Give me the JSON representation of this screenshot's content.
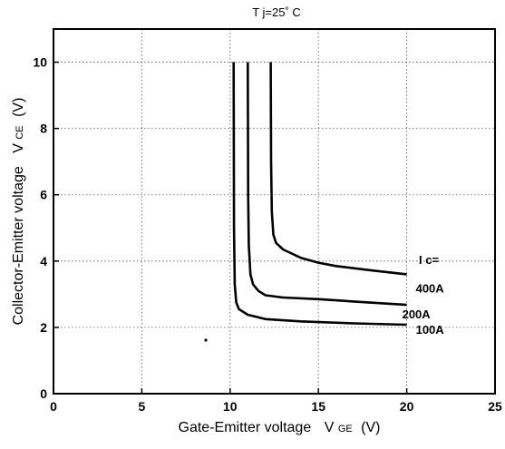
{
  "chart_data": {
    "type": "line",
    "title": "T j=25˚ C",
    "xlabel": "Gate-Emitter voltage",
    "xlabel_symbol_main": "V",
    "xlabel_symbol_sub": "GE",
    "xlabel_unit": "(V)",
    "ylabel": "Collector-Emitter voltage",
    "ylabel_symbol_main": "V",
    "ylabel_symbol_sub": "CE",
    "ylabel_unit": "(V)",
    "xlim": [
      0,
      25
    ],
    "ylim": [
      0,
      11
    ],
    "xticks": [
      0,
      5,
      10,
      15,
      20,
      25
    ],
    "yticks": [
      0,
      2,
      4,
      6,
      8,
      10
    ],
    "grid": true,
    "legend_header": "I c=",
    "series": [
      {
        "name": "400A",
        "x": [
          12.3,
          12.32,
          12.36,
          12.45,
          12.6,
          13.0,
          14.0,
          15.0,
          16.0,
          18.0,
          20.0
        ],
        "y": [
          10.0,
          7.0,
          5.5,
          4.8,
          4.55,
          4.35,
          4.1,
          3.95,
          3.85,
          3.72,
          3.6
        ]
      },
      {
        "name": "200A",
        "x": [
          11.0,
          11.02,
          11.06,
          11.15,
          11.3,
          11.6,
          12.0,
          13.0,
          15.0,
          17.0,
          20.0
        ],
        "y": [
          10.0,
          6.0,
          4.5,
          3.6,
          3.3,
          3.1,
          2.97,
          2.9,
          2.85,
          2.78,
          2.68
        ]
      },
      {
        "name": "100A",
        "x": [
          10.2,
          10.22,
          10.26,
          10.35,
          10.5,
          11.0,
          12.0,
          14.0,
          17.0,
          20.0
        ],
        "y": [
          10.0,
          5.0,
          3.3,
          2.75,
          2.55,
          2.38,
          2.25,
          2.18,
          2.12,
          2.08
        ]
      }
    ]
  }
}
